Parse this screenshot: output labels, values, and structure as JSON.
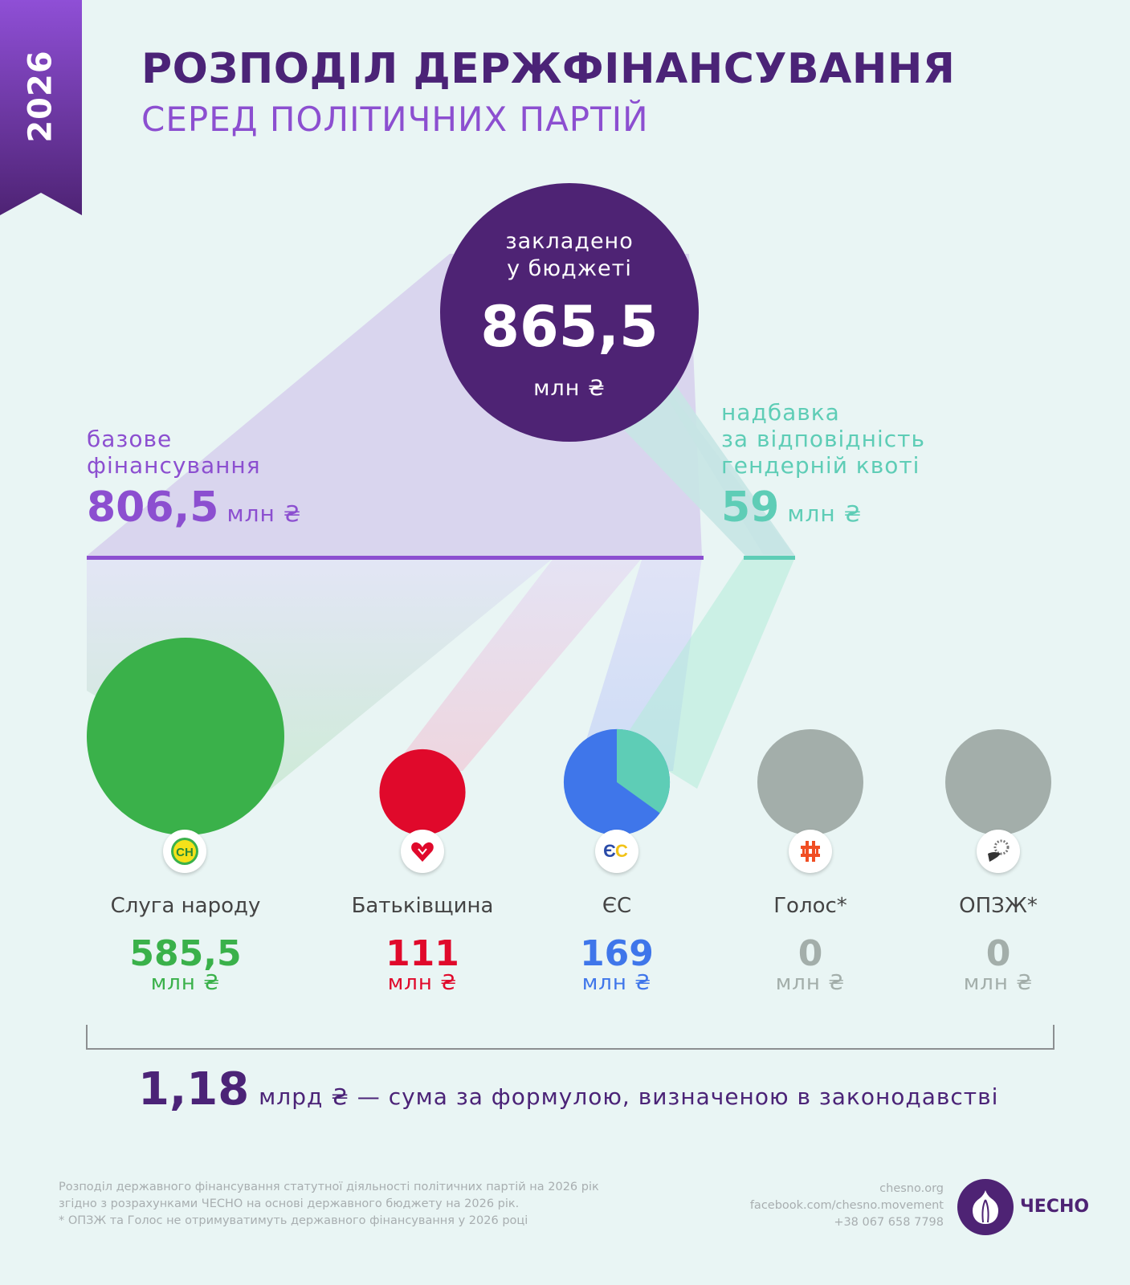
{
  "year": "2026",
  "title": "РОЗПОДІЛ ДЕРЖФІНАНСУВАННЯ",
  "subtitle": "СЕРЕД ПОЛІТИЧНИХ ПАРТІЙ",
  "total": {
    "label_line1": "закладено",
    "label_line2": "у бюджеті",
    "value": "865,5",
    "unit": "млн ₴"
  },
  "base": {
    "label_line1": "базове",
    "label_line2": "фінансування",
    "value": "806,5",
    "unit": "млн ₴"
  },
  "bonus": {
    "label_line1": "надбавка",
    "label_line2": "за відповідність",
    "label_line3": "гендерній квоті",
    "value": "59",
    "unit": "млн ₴"
  },
  "colors": {
    "purple_dark": "#4e2374",
    "purple": "#8c4fd0",
    "teal": "#5ecdb6",
    "green": "#3ab14a",
    "red": "#e0092b",
    "blue": "#3f76ea",
    "grey": "#a3aeaa"
  },
  "chart_data": {
    "type": "bubble",
    "title": "РОЗПОДІЛ ДЕРЖФІНАНСУВАННЯ",
    "subtitle": "СЕРЕД ПОЛІТИЧНИХ ПАРТІЙ",
    "unit": "млн ₴",
    "total": 865.5,
    "base": 806.5,
    "bonus": 59,
    "parties": [
      {
        "name": "Слуга народу",
        "value": 585.5,
        "value_label": "585,5",
        "base": 585.5,
        "bonus": 0,
        "color": "#3ab14a",
        "icon": "servant-of-people-logo-icon"
      },
      {
        "name": "Батьківщина",
        "value": 111,
        "value_label": "111",
        "base": 111,
        "bonus": 0,
        "color": "#e0092b",
        "icon": "heart-icon"
      },
      {
        "name": "ЄС",
        "value": 169,
        "value_label": "169",
        "base": 110,
        "bonus": 59,
        "color": "#3f76ea",
        "icon": "es-logo-icon"
      },
      {
        "name": "Голос*",
        "value": 0,
        "value_label": "0",
        "base": 0,
        "bonus": 0,
        "color": "#a3aeaa",
        "icon": "holos-logo-icon"
      },
      {
        "name": "ОПЗЖ*",
        "value": 0,
        "value_label": "0",
        "base": 0,
        "bonus": 0,
        "color": "#a3aeaa",
        "icon": "opzzh-logo-icon"
      }
    ]
  },
  "formula": {
    "value": "1,18",
    "text": "млрд ₴ — сума за формулою, визначеною в законодавстві"
  },
  "footnotes": [
    "Розподіл державного фінансування статутної діяльності політичних партій на 2026 рік",
    "згідно з розрахунками ЧЕСНО на основі державного бюджету на 2026 рік.",
    "* ОПЗЖ та Голос не отримуватимуть державного фінансування у 2026 році"
  ],
  "contacts": [
    "chesno.org",
    "facebook.com/chesno.movement",
    "+38 067 658 7798"
  ],
  "brand": "ЧЕСНО"
}
